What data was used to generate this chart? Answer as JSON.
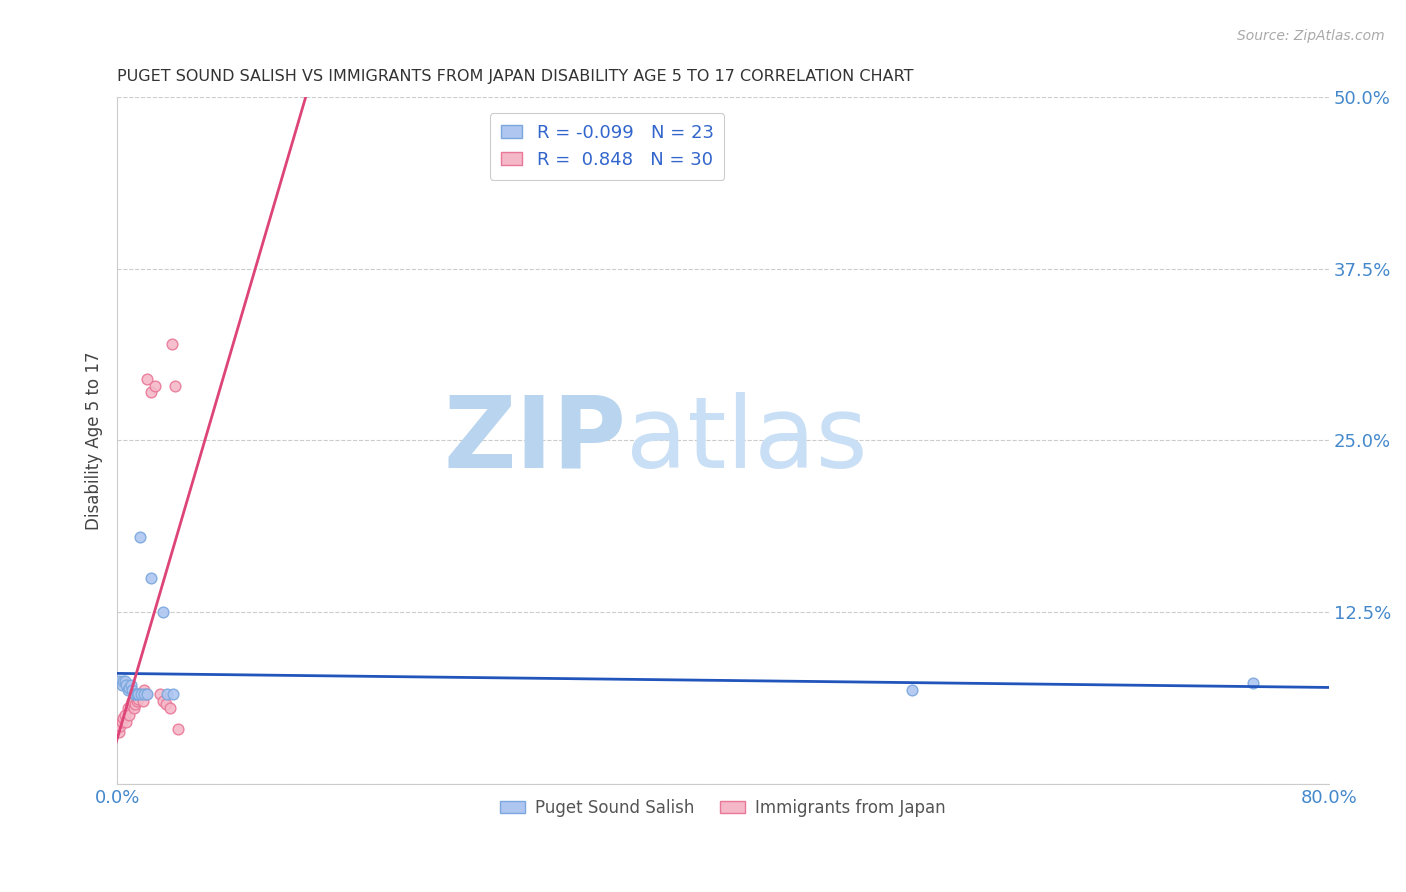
{
  "title": "PUGET SOUND SALISH VS IMMIGRANTS FROM JAPAN DISABILITY AGE 5 TO 17 CORRELATION CHART",
  "source": "Source: ZipAtlas.com",
  "ylabel": "Disability Age 5 to 17",
  "xlim": [
    0.0,
    0.8
  ],
  "ylim": [
    0.0,
    0.5
  ],
  "xticks": [
    0.0,
    0.2,
    0.4,
    0.6,
    0.8
  ],
  "xticklabels": [
    "0.0%",
    "",
    "",
    "",
    "80.0%"
  ],
  "yticks": [
    0.0,
    0.125,
    0.25,
    0.375,
    0.5
  ],
  "yticklabels": [
    "",
    "12.5%",
    "25.0%",
    "37.5%",
    "50.0%"
  ],
  "watermark_zip": "ZIP",
  "watermark_atlas": "atlas",
  "blue_R": -0.099,
  "blue_N": 23,
  "pink_R": 0.848,
  "pink_N": 30,
  "blue_scatter_x": [
    0.001,
    0.003,
    0.004,
    0.005,
    0.006,
    0.007,
    0.008,
    0.009,
    0.01,
    0.011,
    0.012,
    0.013,
    0.014,
    0.016,
    0.018,
    0.02,
    0.022,
    0.03,
    0.033,
    0.037,
    0.525,
    0.75,
    0.015
  ],
  "blue_scatter_y": [
    0.075,
    0.072,
    0.075,
    0.075,
    0.072,
    0.068,
    0.07,
    0.072,
    0.068,
    0.065,
    0.065,
    0.065,
    0.065,
    0.065,
    0.065,
    0.065,
    0.15,
    0.125,
    0.065,
    0.065,
    0.068,
    0.073,
    0.18
  ],
  "pink_scatter_x": [
    0.0,
    0.001,
    0.002,
    0.003,
    0.004,
    0.005,
    0.006,
    0.007,
    0.008,
    0.009,
    0.01,
    0.011,
    0.012,
    0.013,
    0.014,
    0.015,
    0.016,
    0.017,
    0.018,
    0.019,
    0.02,
    0.022,
    0.025,
    0.028,
    0.03,
    0.032,
    0.035,
    0.036,
    0.038,
    0.04
  ],
  "pink_scatter_y": [
    0.04,
    0.038,
    0.042,
    0.045,
    0.048,
    0.05,
    0.045,
    0.055,
    0.05,
    0.058,
    0.06,
    0.055,
    0.058,
    0.06,
    0.062,
    0.065,
    0.065,
    0.06,
    0.068,
    0.065,
    0.295,
    0.285,
    0.29,
    0.065,
    0.06,
    0.058,
    0.055,
    0.32,
    0.29,
    0.04
  ],
  "grid_color": "#cccccc",
  "background_color": "#ffffff",
  "scatter_size": 60,
  "blue_face_color": "#aec6f0",
  "blue_edge_color": "#7ba7de",
  "pink_face_color": "#f5b8c8",
  "pink_edge_color": "#e87898",
  "blue_line_color": "#2255bb",
  "pink_line_color": "#dd4477",
  "title_color": "#333333",
  "axis_tick_color": "#4488cc",
  "watermark_color": "#cde3f5",
  "legend_r_n_color": "#3366cc",
  "legend_label_color": "#333333"
}
